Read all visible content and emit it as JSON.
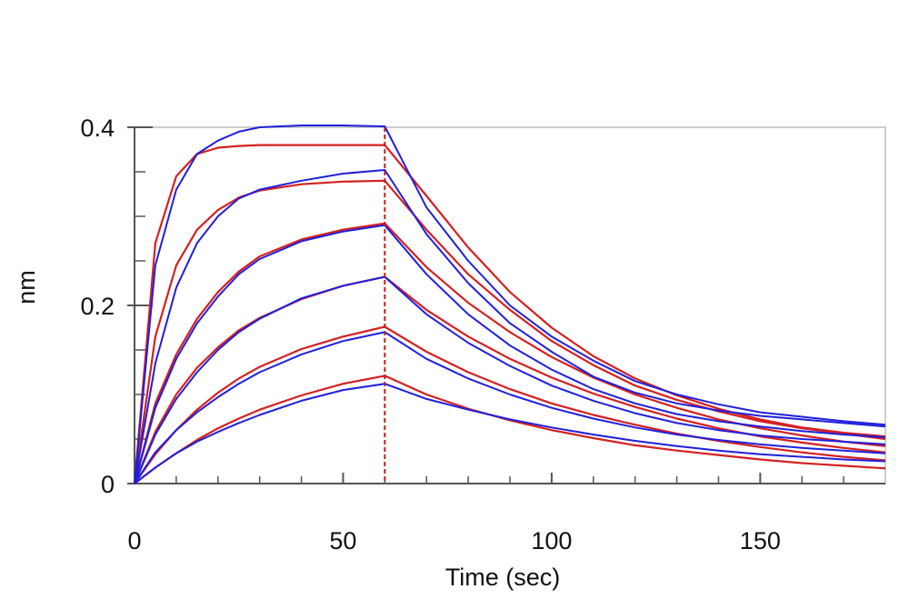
{
  "chart_data": {
    "type": "line",
    "title": "",
    "xlabel": "Time (sec)",
    "ylabel": "nm",
    "xlim": [
      0,
      180
    ],
    "ylim": [
      0,
      0.4
    ],
    "x_ticks": [
      0,
      50,
      100,
      150
    ],
    "x_tick_labels": [
      "0",
      "50",
      "100",
      "150"
    ],
    "y_ticks": [
      0,
      0.2,
      0.4
    ],
    "y_tick_labels": [
      "0",
      "0.2",
      "0.4"
    ],
    "grid": false,
    "legend": "none",
    "dissociation_start": 60,
    "colors": {
      "measured": "#1f1fdd",
      "fit": "#d42020",
      "marker": "#c0201c",
      "axis": "#555555",
      "frame": "#bdbdbd"
    },
    "series": [
      {
        "x": [
          0,
          5,
          10,
          15,
          20,
          25,
          30,
          40,
          50,
          60,
          70,
          80,
          90,
          100,
          110,
          120,
          130,
          140,
          150,
          160,
          170,
          180
        ],
        "measured": [
          0,
          0.245,
          0.33,
          0.37,
          0.385,
          0.395,
          0.4,
          0.402,
          0.402,
          0.401,
          0.31,
          0.25,
          0.2,
          0.165,
          0.138,
          0.115,
          0.1,
          0.089,
          0.08,
          0.075,
          0.07,
          0.066
        ],
        "fit": [
          0,
          0.27,
          0.345,
          0.37,
          0.377,
          0.379,
          0.38,
          0.38,
          0.38,
          0.38,
          0.323,
          0.265,
          0.215,
          0.175,
          0.143,
          0.118,
          0.099,
          0.084,
          0.072,
          0.063,
          0.057,
          0.053
        ]
      },
      {
        "x": [
          0,
          5,
          10,
          15,
          20,
          25,
          30,
          40,
          50,
          60,
          70,
          80,
          90,
          100,
          110,
          120,
          130,
          140,
          150,
          160,
          170,
          180
        ],
        "measured": [
          0,
          0.135,
          0.22,
          0.27,
          0.3,
          0.32,
          0.33,
          0.34,
          0.348,
          0.352,
          0.28,
          0.225,
          0.18,
          0.148,
          0.12,
          0.102,
          0.09,
          0.082,
          0.076,
          0.072,
          0.068,
          0.064
        ],
        "fit": [
          0,
          0.165,
          0.245,
          0.285,
          0.307,
          0.321,
          0.329,
          0.336,
          0.339,
          0.34,
          0.285,
          0.235,
          0.195,
          0.16,
          0.133,
          0.11,
          0.094,
          0.081,
          0.07,
          0.062,
          0.056,
          0.05
        ]
      },
      {
        "x": [
          0,
          5,
          10,
          15,
          20,
          25,
          30,
          40,
          50,
          60,
          70,
          80,
          90,
          100,
          110,
          120,
          130,
          140,
          150,
          160,
          170,
          180
        ],
        "measured": [
          0,
          0.085,
          0.14,
          0.18,
          0.21,
          0.235,
          0.252,
          0.272,
          0.283,
          0.29,
          0.235,
          0.19,
          0.155,
          0.128,
          0.106,
          0.09,
          0.078,
          0.07,
          0.064,
          0.059,
          0.055,
          0.052
        ],
        "fit": [
          0,
          0.09,
          0.145,
          0.185,
          0.215,
          0.238,
          0.255,
          0.274,
          0.285,
          0.292,
          0.243,
          0.203,
          0.17,
          0.142,
          0.119,
          0.1,
          0.085,
          0.072,
          0.062,
          0.054,
          0.047,
          0.042
        ]
      },
      {
        "x": [
          0,
          5,
          10,
          15,
          20,
          25,
          30,
          40,
          50,
          60,
          70,
          80,
          90,
          100,
          110,
          120,
          130,
          140,
          150,
          160,
          170,
          180
        ],
        "measured": [
          0,
          0.055,
          0.095,
          0.125,
          0.15,
          0.17,
          0.185,
          0.208,
          0.222,
          0.232,
          0.19,
          0.158,
          0.132,
          0.11,
          0.093,
          0.079,
          0.068,
          0.06,
          0.054,
          0.05,
          0.047,
          0.044
        ],
        "fit": [
          0,
          0.058,
          0.1,
          0.13,
          0.153,
          0.172,
          0.186,
          0.207,
          0.222,
          0.232,
          0.195,
          0.165,
          0.14,
          0.119,
          0.101,
          0.086,
          0.073,
          0.062,
          0.053,
          0.046,
          0.04,
          0.035
        ]
      },
      {
        "x": [
          0,
          5,
          10,
          15,
          20,
          25,
          30,
          40,
          50,
          60,
          70,
          80,
          90,
          100,
          110,
          120,
          130,
          140,
          150,
          160,
          170,
          180
        ],
        "measured": [
          0,
          0.035,
          0.06,
          0.08,
          0.097,
          0.112,
          0.125,
          0.145,
          0.16,
          0.17,
          0.14,
          0.118,
          0.1,
          0.085,
          0.073,
          0.063,
          0.055,
          0.049,
          0.044,
          0.04,
          0.037,
          0.034
        ],
        "fit": [
          0,
          0.033,
          0.06,
          0.083,
          0.102,
          0.118,
          0.131,
          0.151,
          0.165,
          0.176,
          0.148,
          0.125,
          0.106,
          0.09,
          0.077,
          0.066,
          0.056,
          0.048,
          0.041,
          0.035,
          0.03,
          0.026
        ]
      },
      {
        "x": [
          0,
          5,
          10,
          15,
          20,
          25,
          30,
          40,
          50,
          60,
          70,
          80,
          90,
          100,
          110,
          120,
          130,
          140,
          150,
          160,
          170,
          180
        ],
        "measured": [
          0,
          0.018,
          0.034,
          0.047,
          0.058,
          0.068,
          0.077,
          0.093,
          0.105,
          0.112,
          0.095,
          0.083,
          0.072,
          0.063,
          0.055,
          0.048,
          0.042,
          0.037,
          0.033,
          0.03,
          0.027,
          0.025
        ],
        "fit": [
          0,
          0.018,
          0.034,
          0.049,
          0.062,
          0.073,
          0.083,
          0.099,
          0.112,
          0.121,
          0.1,
          0.084,
          0.071,
          0.06,
          0.051,
          0.043,
          0.037,
          0.032,
          0.027,
          0.023,
          0.02,
          0.017
        ]
      }
    ]
  }
}
